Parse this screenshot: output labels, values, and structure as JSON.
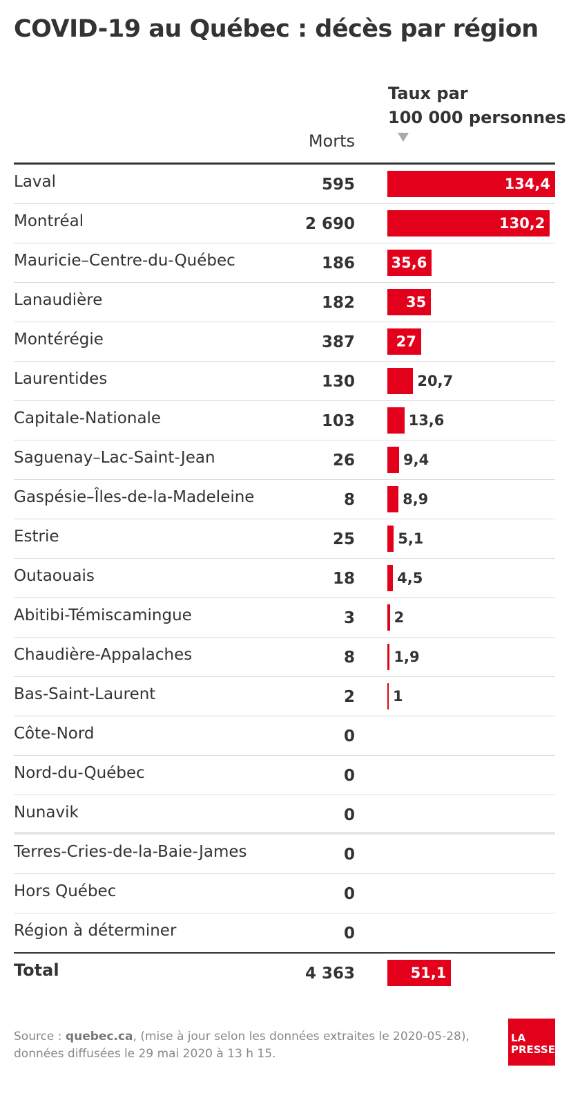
{
  "title": "COVID-19 au Québec : décès par région",
  "columns": {
    "morts": "Morts",
    "taux_line1": "Taux par",
    "taux_line2": "100 000 personnes"
  },
  "colors": {
    "bar": "#e2001a",
    "text": "#333333"
  },
  "sort_icon": "sort-down-triangle-icon",
  "chart_data": {
    "type": "bar",
    "title": "COVID-19 au Québec : décès par région",
    "xlabel": "",
    "ylabel": "Taux par 100 000 personnes",
    "rows": [
      {
        "region": "Laval",
        "morts": "595",
        "taux": 134.4,
        "taux_label": "134,4"
      },
      {
        "region": "Montréal",
        "morts": "2 690",
        "taux": 130.2,
        "taux_label": "130,2"
      },
      {
        "region": "Mauricie–Centre-du-Québec",
        "morts": "186",
        "taux": 35.6,
        "taux_label": "35,6"
      },
      {
        "region": "Lanaudière",
        "morts": "182",
        "taux": 35,
        "taux_label": "35"
      },
      {
        "region": "Montérégie",
        "morts": "387",
        "taux": 27,
        "taux_label": "27"
      },
      {
        "region": "Laurentides",
        "morts": "130",
        "taux": 20.7,
        "taux_label": "20,7"
      },
      {
        "region": "Capitale-Nationale",
        "morts": "103",
        "taux": 13.6,
        "taux_label": "13,6"
      },
      {
        "region": "Saguenay–Lac-Saint-Jean",
        "morts": "26",
        "taux": 9.4,
        "taux_label": "9,4"
      },
      {
        "region": "Gaspésie–Îles-de-la-Madeleine",
        "morts": "8",
        "taux": 8.9,
        "taux_label": "8,9"
      },
      {
        "region": "Estrie",
        "morts": "25",
        "taux": 5.1,
        "taux_label": "5,1"
      },
      {
        "region": "Outaouais",
        "morts": "18",
        "taux": 4.5,
        "taux_label": "4,5"
      },
      {
        "region": "Abitibi-Témiscamingue",
        "morts": "3",
        "taux": 2,
        "taux_label": "2"
      },
      {
        "region": "Chaudière-Appalaches",
        "morts": "8",
        "taux": 1.9,
        "taux_label": "1,9"
      },
      {
        "region": "Bas-Saint-Laurent",
        "morts": "2",
        "taux": 1,
        "taux_label": "1"
      },
      {
        "region": "Côte-Nord",
        "morts": "0",
        "taux": null,
        "taux_label": ""
      },
      {
        "region": "Nord-du-Québec",
        "morts": "0",
        "taux": null,
        "taux_label": ""
      },
      {
        "region": "Nunavik",
        "morts": "0",
        "taux": null,
        "taux_label": ""
      },
      {
        "region": "Terres-Cries-de-la-Baie-James",
        "morts": "0",
        "taux": null,
        "taux_label": ""
      },
      {
        "region": "Hors Québec",
        "morts": "0",
        "taux": null,
        "taux_label": ""
      },
      {
        "region": "Région à déterminer",
        "morts": "0",
        "taux": null,
        "taux_label": ""
      }
    ],
    "total": {
      "label": "Total",
      "morts": "4 363",
      "taux": 51.1,
      "taux_label": "51,1"
    },
    "xlim": [
      0,
      134.4
    ]
  },
  "source": {
    "prefix": "Source : ",
    "site": "quebec.ca",
    "rest": ", (mise à jour selon les données extraites le 2020-05-28), données diffusées le 29 mai 2020 à 13 h 15."
  },
  "logo": {
    "line1": "LA",
    "line2": "PRESSE"
  }
}
